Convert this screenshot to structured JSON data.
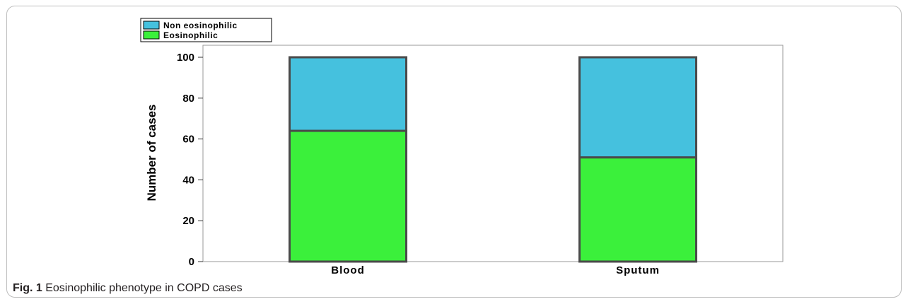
{
  "figure": {
    "label": "Fig. 1",
    "caption": "Eosinophilic phenotype in COPD cases"
  },
  "chart_data": {
    "type": "bar",
    "stacked": true,
    "categories": [
      "Blood",
      "Sputum"
    ],
    "series": [
      {
        "name": "Eosinophilic",
        "values": [
          64,
          51
        ],
        "color": "#3bf03b"
      },
      {
        "name": "Non eosinophilic",
        "values": [
          36,
          49
        ],
        "color": "#45c1de"
      }
    ],
    "ylabel": "Number of cases",
    "xlabel": "",
    "ylim": [
      0,
      100
    ],
    "yticks": [
      0,
      20,
      40,
      60,
      80,
      100
    ],
    "legend": {
      "placement": "top-left",
      "entries": [
        {
          "label": "Non eosinophilic",
          "color": "#45c1de"
        },
        {
          "label": "Eosinophilic",
          "color": "#3bf03b"
        }
      ]
    },
    "grid": false
  }
}
